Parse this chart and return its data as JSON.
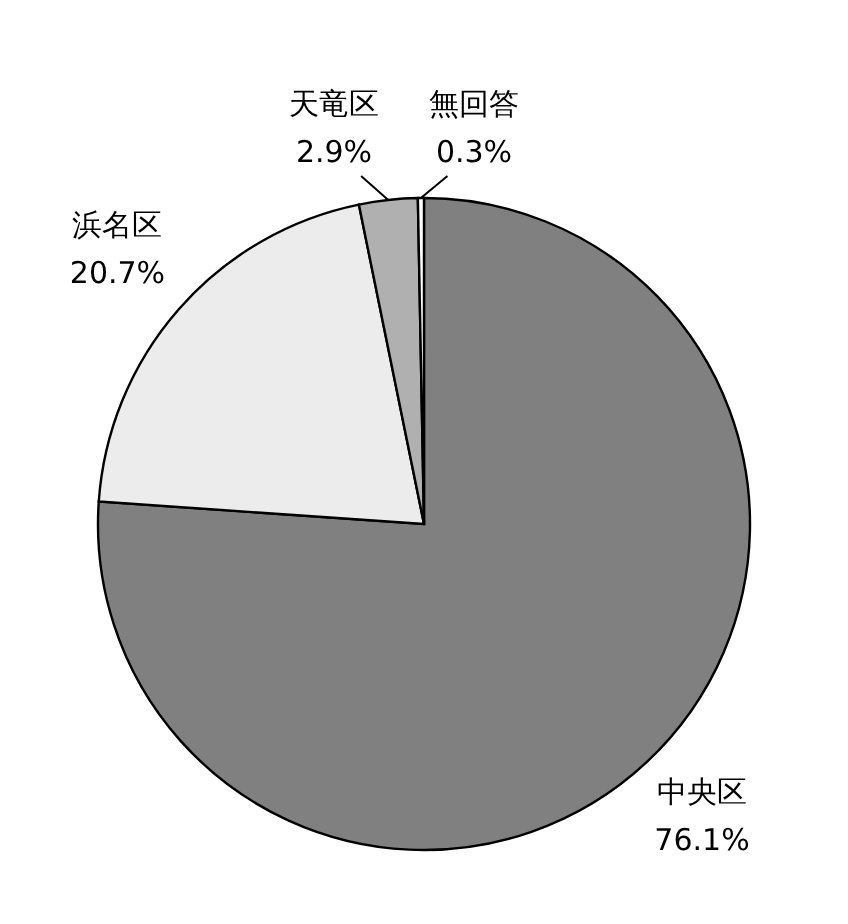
{
  "chart_data": {
    "type": "pie",
    "categories": [
      "中央区",
      "浜名区",
      "天竜区",
      "無回答"
    ],
    "values": [
      76.1,
      20.7,
      2.9,
      0.3
    ],
    "colors": [
      "#808080",
      "#ececec",
      "#b0b0b0",
      "#ffffff"
    ],
    "value_labels": [
      "76.1%",
      "20.7%",
      "2.9%",
      "0.3%"
    ]
  }
}
